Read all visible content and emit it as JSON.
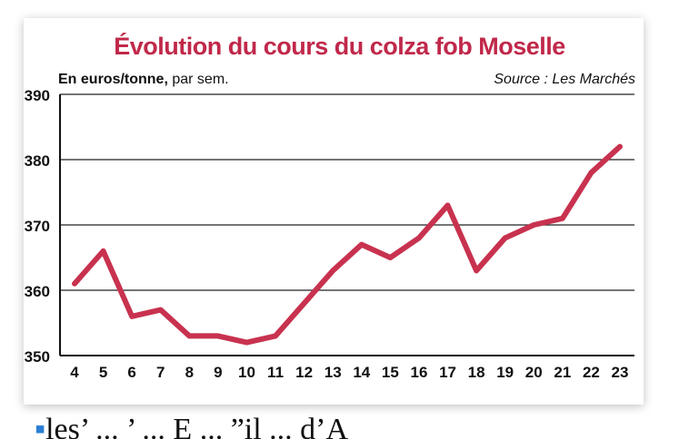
{
  "chart_data": {
    "type": "line",
    "title": "Évolution du cours du colza fob Moselle",
    "unit_bold": "En euros/tonne,",
    "unit_rest": " par sem.",
    "source": "Source : Les Marchés",
    "x": [
      4,
      5,
      6,
      7,
      8,
      9,
      10,
      11,
      12,
      13,
      14,
      15,
      16,
      17,
      18,
      19,
      20,
      21,
      22,
      23
    ],
    "series": [
      {
        "values": [
          361,
          366,
          356,
          357,
          353,
          353,
          352,
          353,
          358,
          363,
          367,
          365,
          368,
          373,
          363,
          368,
          370,
          371,
          378,
          382
        ]
      }
    ],
    "ylim": [
      350,
      390
    ],
    "yticks": [
      350,
      360,
      370,
      380,
      390
    ],
    "grid": true,
    "colors": {
      "line": "#c8324f",
      "title": "#c0284a",
      "grid": "#222222"
    }
  },
  "footer_text": "les’ ... ’ ... E ... ”il ... d’A"
}
